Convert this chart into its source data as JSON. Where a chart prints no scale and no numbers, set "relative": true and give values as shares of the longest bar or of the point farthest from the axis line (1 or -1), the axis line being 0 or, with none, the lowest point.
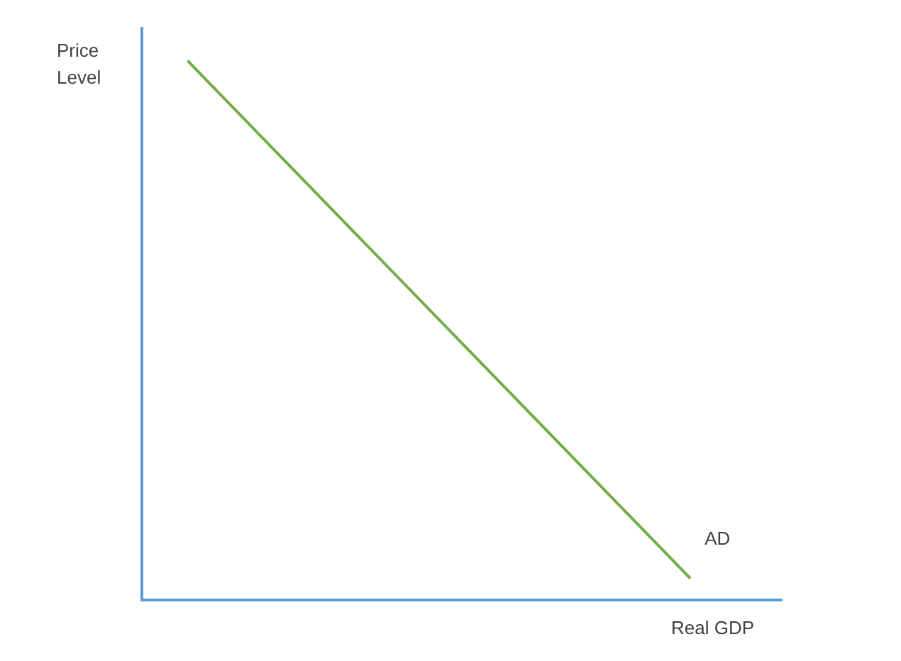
{
  "chart_data": {
    "type": "line",
    "relative": true,
    "xlabel": "Real GDP",
    "ylabel": "Price Level",
    "legend": false,
    "grid": false,
    "marker": "none",
    "categories": [
      null,
      null,
      null,
      null,
      null,
      null,
      null,
      null,
      null,
      null,
      null,
      null,
      null,
      null,
      null
    ],
    "series": [
      {
        "name": "AD",
        "color": "#70ad47",
        "values": [
          null,
          1,
          null,
          null,
          null,
          null,
          null,
          null,
          null,
          null,
          null,
          null,
          0.04,
          null,
          null
        ]
      }
    ]
  }
}
